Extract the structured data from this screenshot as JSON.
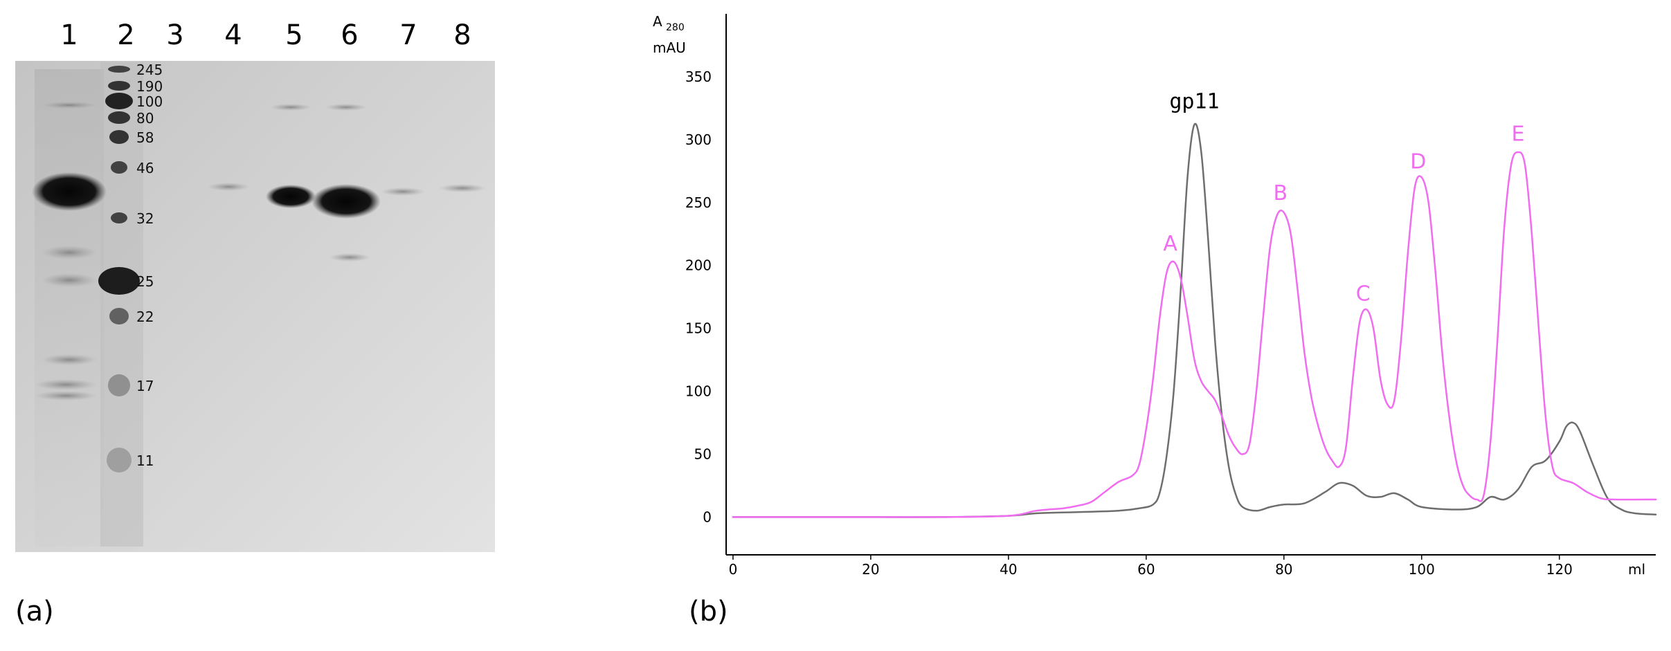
{
  "panel_a": {
    "label": "(a)",
    "lane_labels": [
      "1",
      "2",
      "3",
      "4",
      "5",
      "6",
      "7",
      "8"
    ],
    "marker_labels": [
      "245",
      "190",
      "100",
      "80",
      "58",
      "46",
      "32",
      "25",
      "22",
      "17",
      "11"
    ]
  },
  "panel_b": {
    "label": "(b)",
    "colors": {
      "sample": "#6e6e6e",
      "standards": "#f06cf0",
      "axis": "#000000"
    }
  },
  "chart_data": {
    "type": "line",
    "title": "",
    "xlabel": "ml",
    "ylabel": "A280 mAU",
    "ylabel_main": "A",
    "ylabel_sub": "280",
    "ylabel_unit": "mAU",
    "xlim": [
      -1,
      134
    ],
    "ylim": [
      -30,
      400
    ],
    "x_ticks": [
      0,
      20,
      40,
      60,
      80,
      100,
      120
    ],
    "y_ticks": [
      0,
      50,
      100,
      150,
      200,
      250,
      300,
      350
    ],
    "grid": false,
    "series": [
      {
        "name": "",
        "color": "#6e6e6e",
        "label": "gp11",
        "label_x": 67,
        "label_y": 325,
        "points": [
          [
            0,
            0
          ],
          [
            10,
            0
          ],
          [
            20,
            0
          ],
          [
            30,
            0
          ],
          [
            40,
            1
          ],
          [
            44,
            3
          ],
          [
            50,
            4
          ],
          [
            56,
            5
          ],
          [
            59,
            7
          ],
          [
            61,
            10
          ],
          [
            62,
            20
          ],
          [
            63,
            50
          ],
          [
            64,
            100
          ],
          [
            65,
            180
          ],
          [
            66,
            270
          ],
          [
            67,
            312
          ],
          [
            68,
            290
          ],
          [
            69,
            220
          ],
          [
            70,
            140
          ],
          [
            71,
            80
          ],
          [
            72,
            40
          ],
          [
            73,
            18
          ],
          [
            74,
            8
          ],
          [
            76,
            5
          ],
          [
            78,
            8
          ],
          [
            80,
            10
          ],
          [
            83,
            11
          ],
          [
            86,
            20
          ],
          [
            88,
            27
          ],
          [
            90,
            25
          ],
          [
            92,
            17
          ],
          [
            94,
            16
          ],
          [
            96,
            19
          ],
          [
            98,
            14
          ],
          [
            100,
            8
          ],
          [
            105,
            6
          ],
          [
            108,
            8
          ],
          [
            110,
            16
          ],
          [
            112,
            14
          ],
          [
            114,
            22
          ],
          [
            116,
            40
          ],
          [
            118,
            45
          ],
          [
            120,
            60
          ],
          [
            121,
            72
          ],
          [
            122,
            75
          ],
          [
            123,
            68
          ],
          [
            125,
            40
          ],
          [
            127,
            15
          ],
          [
            129,
            6
          ],
          [
            131,
            3
          ],
          [
            134,
            2
          ]
        ]
      },
      {
        "name": "",
        "color": "#f06cf0",
        "label_points": [
          {
            "text": "A",
            "x": 63.5,
            "y": 212
          },
          {
            "text": "B",
            "x": 79.5,
            "y": 252
          },
          {
            "text": "C",
            "x": 91.5,
            "y": 172
          },
          {
            "text": "D",
            "x": 99.5,
            "y": 277
          },
          {
            "text": "E",
            "x": 114,
            "y": 299
          }
        ],
        "points": [
          [
            0,
            0
          ],
          [
            10,
            0
          ],
          [
            20,
            0
          ],
          [
            30,
            0
          ],
          [
            40,
            1
          ],
          [
            44,
            5
          ],
          [
            48,
            7
          ],
          [
            50,
            9
          ],
          [
            52,
            12
          ],
          [
            54,
            20
          ],
          [
            56,
            28
          ],
          [
            58,
            33
          ],
          [
            59,
            42
          ],
          [
            60,
            70
          ],
          [
            61,
            110
          ],
          [
            62,
            160
          ],
          [
            63,
            195
          ],
          [
            64,
            203
          ],
          [
            65,
            190
          ],
          [
            66,
            160
          ],
          [
            67,
            125
          ],
          [
            68,
            108
          ],
          [
            69,
            100
          ],
          [
            70,
            93
          ],
          [
            71,
            80
          ],
          [
            72,
            65
          ],
          [
            73,
            55
          ],
          [
            74,
            50
          ],
          [
            75,
            58
          ],
          [
            76,
            100
          ],
          [
            77,
            160
          ],
          [
            78,
            215
          ],
          [
            79,
            240
          ],
          [
            80,
            242
          ],
          [
            81,
            225
          ],
          [
            82,
            180
          ],
          [
            83,
            130
          ],
          [
            84,
            95
          ],
          [
            85,
            72
          ],
          [
            86,
            55
          ],
          [
            87,
            45
          ],
          [
            88,
            40
          ],
          [
            89,
            55
          ],
          [
            90,
            110
          ],
          [
            91,
            155
          ],
          [
            92,
            165
          ],
          [
            93,
            150
          ],
          [
            94,
            110
          ],
          [
            95,
            90
          ],
          [
            96,
            92
          ],
          [
            97,
            140
          ],
          [
            98,
            210
          ],
          [
            99,
            262
          ],
          [
            100,
            270
          ],
          [
            101,
            250
          ],
          [
            102,
            195
          ],
          [
            103,
            130
          ],
          [
            104,
            80
          ],
          [
            105,
            45
          ],
          [
            106,
            25
          ],
          [
            107,
            17
          ],
          [
            108,
            14
          ],
          [
            109,
            17
          ],
          [
            110,
            60
          ],
          [
            111,
            140
          ],
          [
            112,
            230
          ],
          [
            113,
            280
          ],
          [
            114,
            290
          ],
          [
            115,
            280
          ],
          [
            116,
            225
          ],
          [
            117,
            150
          ],
          [
            118,
            80
          ],
          [
            119,
            40
          ],
          [
            120,
            31
          ],
          [
            122,
            27
          ],
          [
            124,
            20
          ],
          [
            126,
            15
          ],
          [
            128,
            14
          ],
          [
            134,
            14
          ]
        ]
      }
    ]
  }
}
